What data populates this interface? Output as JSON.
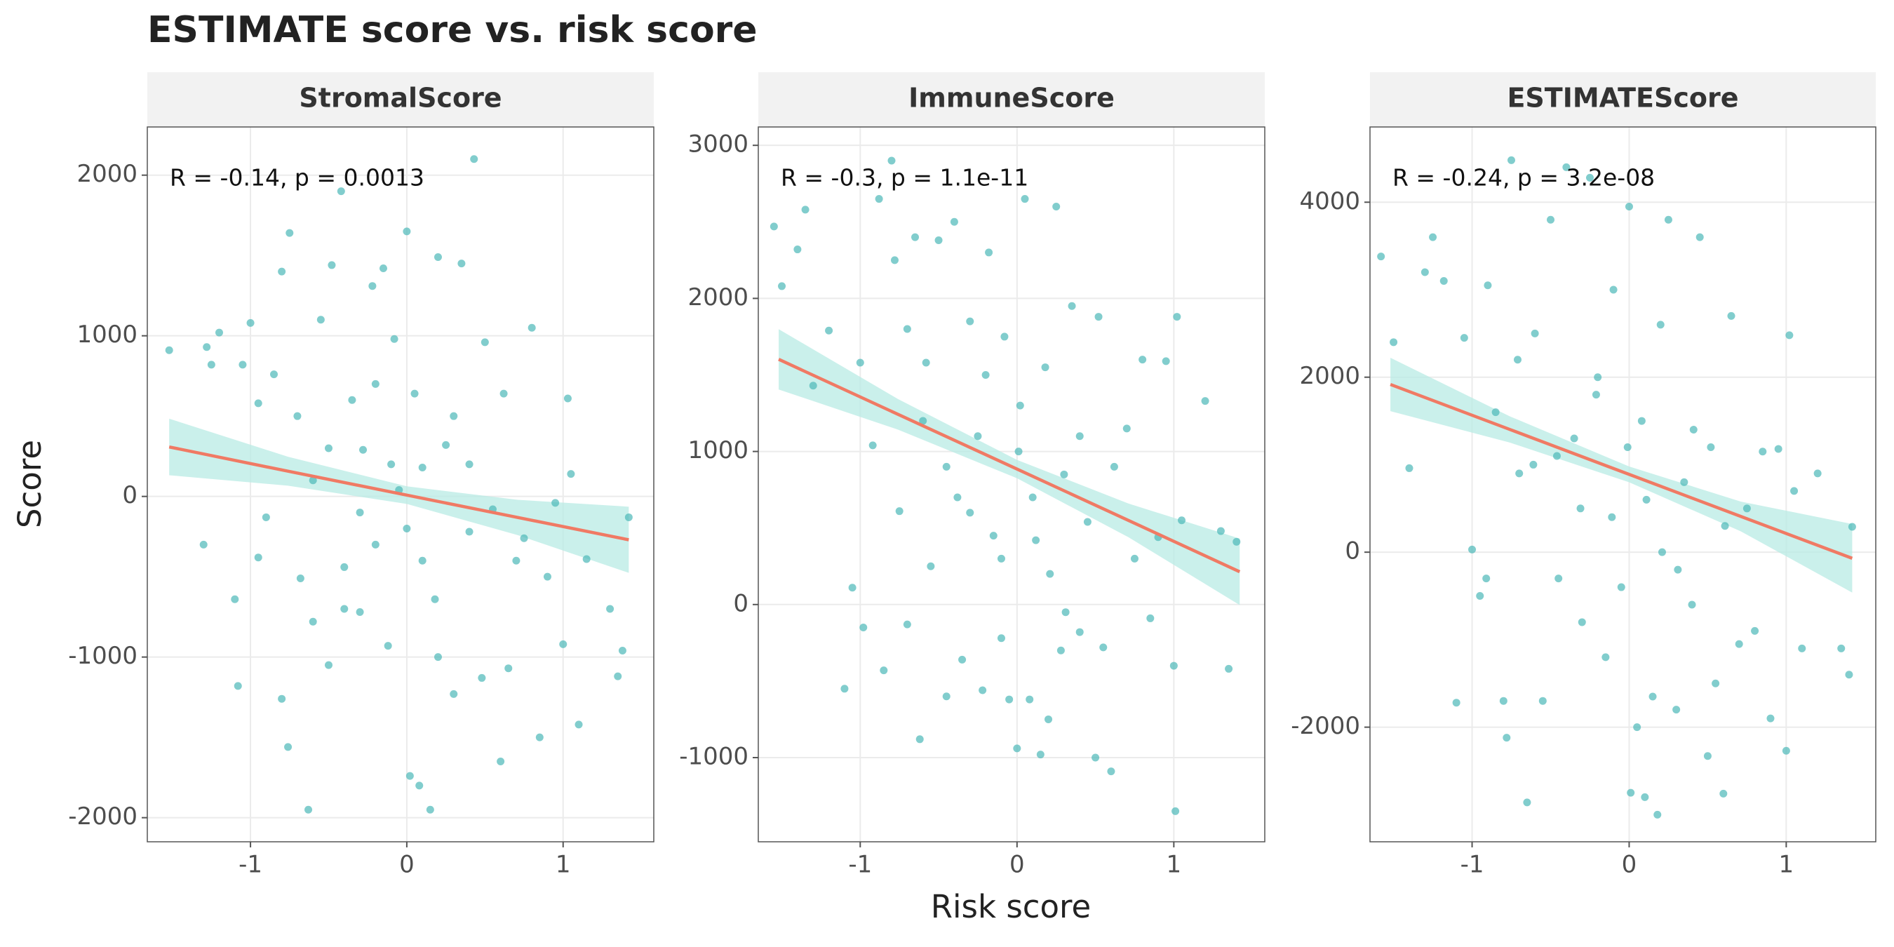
{
  "title": "ESTIMATE score vs. risk score",
  "xlabel": "Risk score",
  "ylabel": "Score",
  "chart_data": [
    {
      "type": "scatter",
      "title": "StromalScore",
      "annotation": "R = -0.14, p = 0.0013",
      "color": "#4cb8b8",
      "grid": true,
      "xlim": [
        -1.66,
        1.58
      ],
      "ylim": [
        -2150,
        2300
      ],
      "xticks": [
        -1,
        0,
        1
      ],
      "yticks": [
        -2000,
        -1000,
        0,
        1000,
        2000
      ],
      "x": [
        -1.52,
        -1.28,
        -1.25,
        -1.2,
        -1.1,
        -1.08,
        -1.05,
        -1.0,
        -0.95,
        -0.9,
        -0.85,
        -0.8,
        -0.8,
        -0.76,
        -0.75,
        -0.7,
        -0.68,
        -0.63,
        -0.6,
        -0.55,
        -0.5,
        -0.48,
        -0.42,
        -0.4,
        -0.35,
        -0.3,
        -0.28,
        -0.22,
        -0.2,
        -0.15,
        -0.12,
        -0.08,
        -0.05,
        0.0,
        0.02,
        0.05,
        0.08,
        0.1,
        0.15,
        0.18,
        0.2,
        0.25,
        0.3,
        0.35,
        0.4,
        0.43,
        0.48,
        0.5,
        0.55,
        0.6,
        0.62,
        0.7,
        0.75,
        0.8,
        0.85,
        0.9,
        0.95,
        1.0,
        1.03,
        1.05,
        1.1,
        1.15,
        1.3,
        1.35,
        1.38,
        1.42,
        -0.3,
        -0.1,
        0.1,
        -0.5,
        -0.2,
        0.3,
        0.0,
        -0.4,
        0.2,
        -0.6,
        0.4,
        -1.3,
        -0.95,
        0.65
      ],
      "y": [
        910,
        930,
        820,
        1020,
        -640,
        -1180,
        820,
        1080,
        580,
        -130,
        760,
        1400,
        -1260,
        -1560,
        1640,
        500,
        -510,
        -1950,
        -780,
        1100,
        -1050,
        1440,
        1900,
        -440,
        600,
        -720,
        290,
        1310,
        -300,
        1420,
        -930,
        980,
        40,
        1650,
        -1740,
        640,
        -1800,
        180,
        -1950,
        -640,
        1490,
        320,
        -1230,
        1450,
        -220,
        2100,
        -1130,
        960,
        -80,
        -1650,
        640,
        -400,
        -260,
        1050,
        -1500,
        -500,
        -40,
        -920,
        610,
        140,
        -1420,
        -390,
        -700,
        -1120,
        -960,
        -130,
        -100,
        200,
        -400,
        300,
        700,
        500,
        -200,
        -700,
        -1000,
        100,
        200,
        -300,
        -380,
        -1070
      ],
      "fit": {
        "color": "#f07a64",
        "band_color": "#b8ebe4",
        "x": [
          -1.52,
          -0.76,
          0,
          0.71,
          1.42
        ],
        "y": [
          308,
          157,
          8,
          -131,
          -270
        ],
        "lower": [
          132,
          67,
          -47,
          -241,
          -476
        ],
        "upper": [
          484,
          247,
          63,
          -21,
          -64
        ]
      }
    },
    {
      "type": "scatter",
      "title": "ImmuneScore",
      "annotation": "R = -0.3, p = 1.1e-11",
      "color": "#4cb8b8",
      "grid": true,
      "xlim": [
        -1.65,
        1.58
      ],
      "ylim": [
        -1550,
        3120
      ],
      "xticks": [
        -1,
        0,
        1
      ],
      "yticks": [
        -1000,
        0,
        1000,
        2000,
        3000
      ],
      "x": [
        -1.55,
        -1.5,
        -1.4,
        -1.35,
        -1.3,
        -1.2,
        -1.1,
        -1.05,
        -1.0,
        -0.98,
        -0.92,
        -0.88,
        -0.85,
        -0.8,
        -0.78,
        -0.75,
        -0.7,
        -0.65,
        -0.62,
        -0.58,
        -0.55,
        -0.5,
        -0.45,
        -0.4,
        -0.38,
        -0.35,
        -0.3,
        -0.25,
        -0.22,
        -0.18,
        -0.15,
        -0.1,
        -0.08,
        -0.05,
        0.0,
        0.02,
        0.05,
        0.08,
        0.12,
        0.15,
        0.18,
        0.2,
        0.25,
        0.28,
        0.3,
        0.35,
        0.4,
        0.45,
        0.5,
        0.52,
        0.55,
        0.6,
        0.62,
        0.7,
        0.75,
        0.8,
        0.85,
        0.9,
        0.95,
        1.0,
        1.02,
        1.01,
        1.05,
        1.2,
        1.3,
        1.35,
        1.4,
        -0.6,
        -0.3,
        0.01,
        0.21,
        -0.2,
        0.1,
        -0.45,
        0.31,
        -0.7,
        -0.1,
        0.4
      ],
      "y": [
        2470,
        2080,
        2320,
        2580,
        1430,
        1790,
        -550,
        110,
        1580,
        -150,
        1040,
        2650,
        -430,
        2900,
        2250,
        610,
        -130,
        2400,
        -880,
        1580,
        250,
        2380,
        -600,
        2500,
        700,
        -360,
        1850,
        1100,
        -560,
        2300,
        450,
        -220,
        1750,
        -620,
        -940,
        1300,
        2650,
        -620,
        420,
        -980,
        1550,
        -750,
        2600,
        -300,
        850,
        1950,
        -180,
        540,
        -1000,
        1880,
        -280,
        -1090,
        900,
        1150,
        300,
        1600,
        -90,
        440,
        1590,
        -400,
        1880,
        -1350,
        550,
        1330,
        480,
        -420,
        410,
        1200,
        600,
        1000,
        200,
        1500,
        700,
        900,
        -50,
        1800,
        300,
        1100
      ],
      "fit": {
        "color": "#f07a64",
        "band_color": "#b8ebe4",
        "x": [
          -1.52,
          -0.76,
          0,
          0.71,
          1.42
        ],
        "y": [
          1602,
          1243,
          885,
          550,
          214
        ],
        "lower": [
          1405,
          1143,
          825,
          440,
          -3
        ],
        "upper": [
          1799,
          1343,
          945,
          660,
          431
        ]
      }
    },
    {
      "type": "scatter",
      "title": "ESTIMATEScore",
      "annotation": "R = -0.24, p = 3.2e-08",
      "color": "#4cb8b8",
      "grid": true,
      "xlim": [
        -1.65,
        1.57
      ],
      "ylim": [
        -3310,
        4860
      ],
      "xticks": [
        -1,
        0,
        1
      ],
      "yticks": [
        -2000,
        0,
        2000,
        4000
      ],
      "x": [
        -1.58,
        -1.5,
        -1.4,
        -1.3,
        -1.25,
        -1.18,
        -1.1,
        -1.05,
        -1.0,
        -0.95,
        -0.9,
        -0.85,
        -0.8,
        -0.78,
        -0.75,
        -0.7,
        -0.65,
        -0.6,
        -0.55,
        -0.5,
        -0.45,
        -0.4,
        -0.35,
        -0.3,
        -0.25,
        -0.2,
        -0.15,
        -0.1,
        -0.05,
        0.0,
        0.01,
        0.05,
        0.08,
        0.1,
        0.15,
        0.18,
        0.2,
        0.25,
        0.3,
        0.35,
        0.4,
        0.45,
        0.5,
        0.52,
        0.55,
        0.6,
        0.65,
        0.7,
        0.75,
        0.8,
        0.85,
        0.9,
        0.95,
        1.0,
        1.02,
        1.05,
        1.1,
        1.2,
        1.35,
        1.4,
        1.42,
        -0.61,
        -0.31,
        -0.01,
        0.21,
        -0.21,
        0.11,
        -0.46,
        0.31,
        -0.71,
        -0.11,
        0.41,
        -0.91,
        0.61
      ],
      "y": [
        3380,
        2400,
        960,
        3200,
        3600,
        3100,
        -1720,
        2450,
        30,
        -500,
        3050,
        1600,
        -1700,
        -2120,
        4480,
        900,
        -2860,
        2500,
        -1700,
        3800,
        -300,
        4400,
        1300,
        -800,
        4280,
        2000,
        -1200,
        3000,
        -400,
        3950,
        -2750,
        -2000,
        1500,
        -2800,
        -1650,
        -3000,
        2600,
        3800,
        -1800,
        800,
        -600,
        3600,
        -2330,
        1200,
        -1500,
        -2760,
        2700,
        -1050,
        500,
        -900,
        1150,
        -1900,
        1180,
        -2270,
        2480,
        700,
        -1100,
        900,
        -1100,
        -1400,
        290,
        1000,
        500,
        1200,
        0,
        1800,
        600,
        1100,
        -200,
        2200,
        400,
        1400,
        -300,
        300
      ],
      "fit": {
        "color": "#f07a64",
        "band_color": "#b8ebe4",
        "x": [
          -1.52,
          -0.76,
          0,
          0.71,
          1.42
        ],
        "y": [
          1917,
          1403,
          889,
          409,
          -70
        ],
        "lower": [
          1612,
          1253,
          799,
          239,
          -462
        ],
        "upper": [
          2222,
          1553,
          979,
          579,
          322
        ]
      }
    }
  ]
}
